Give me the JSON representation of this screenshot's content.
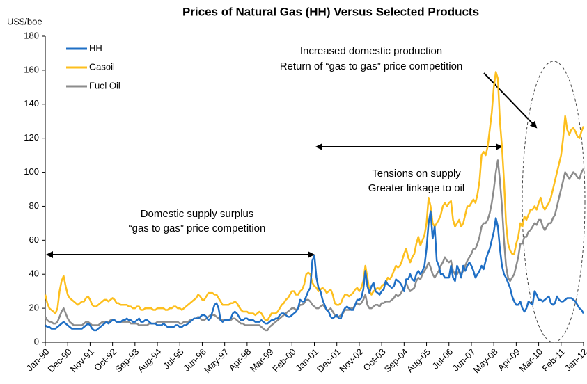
{
  "chart_data": {
    "type": "line",
    "title": "Prices of Natural Gas (HH) Versus Selected Products",
    "y_label": "US$/boe",
    "categories": [
      "Jan-90",
      null,
      null,
      null,
      null,
      null,
      null,
      null,
      null,
      null,
      null,
      "Dec-90",
      null,
      null,
      null,
      null,
      null,
      null,
      null,
      null,
      null,
      null,
      "Nov-91",
      null,
      null,
      null,
      null,
      null,
      null,
      null,
      null,
      null,
      null,
      "Oct-92",
      null,
      null,
      null,
      null,
      null,
      null,
      null,
      null,
      null,
      null,
      "Sep-93",
      null,
      null,
      null,
      null,
      null,
      null,
      null,
      null,
      null,
      null,
      "Aug-94",
      null,
      null,
      null,
      null,
      null,
      null,
      null,
      null,
      null,
      null,
      "Jul-95",
      null,
      null,
      null,
      null,
      null,
      null,
      null,
      null,
      null,
      null,
      "Jun-96",
      null,
      null,
      null,
      null,
      null,
      null,
      null,
      null,
      null,
      null,
      "May-97",
      null,
      null,
      null,
      null,
      null,
      null,
      null,
      null,
      null,
      null,
      "Apr-98",
      null,
      null,
      null,
      null,
      null,
      null,
      null,
      null,
      null,
      null,
      "Mar-99",
      null,
      null,
      null,
      null,
      null,
      null,
      null,
      null,
      null,
      null,
      "Feb-00",
      null,
      null,
      null,
      null,
      null,
      null,
      null,
      null,
      null,
      null,
      "Jan-01",
      null,
      null,
      null,
      null,
      null,
      null,
      null,
      null,
      null,
      null,
      "Dec-01",
      null,
      null,
      null,
      null,
      null,
      null,
      null,
      null,
      null,
      null,
      "Nov-02",
      null,
      null,
      null,
      null,
      null,
      null,
      null,
      null,
      null,
      null,
      "Oct-03",
      null,
      null,
      null,
      null,
      null,
      null,
      null,
      null,
      null,
      null,
      "Sep-04",
      null,
      null,
      null,
      null,
      null,
      null,
      null,
      null,
      null,
      null,
      "Aug-05",
      null,
      null,
      null,
      null,
      null,
      null,
      null,
      null,
      null,
      null,
      "Jul-06",
      null,
      null,
      null,
      null,
      null,
      null,
      null,
      null,
      null,
      null,
      "Jun-07",
      null,
      null,
      null,
      null,
      null,
      null,
      null,
      null,
      null,
      null,
      "May-08",
      null,
      null,
      null,
      null,
      null,
      null,
      null,
      null,
      null,
      null,
      "Apr-09",
      null,
      null,
      null,
      null,
      null,
      null,
      null,
      null,
      null,
      null,
      "Mar-10",
      null,
      null,
      null,
      null,
      null,
      null,
      null,
      null,
      null,
      null,
      "Feb-11",
      null,
      null,
      null,
      null,
      null,
      null,
      null,
      null,
      null,
      null,
      "Jan-12"
    ],
    "series": [
      {
        "name": "HH",
        "color": "#1f6fc5",
        "values": [
          10,
          9,
          9,
          8,
          8,
          8,
          9,
          10,
          11,
          12,
          11,
          10,
          9,
          8,
          8,
          8,
          8,
          8,
          8,
          9,
          10,
          11,
          10,
          8,
          7,
          7,
          8,
          9,
          10,
          11,
          12,
          11,
          12,
          13,
          13,
          12,
          12,
          12,
          13,
          13,
          14,
          13,
          13,
          12,
          12,
          13,
          14,
          12,
          12,
          13,
          13,
          12,
          11,
          11,
          11,
          10,
          10,
          10,
          11,
          10,
          9,
          9,
          9,
          9,
          10,
          10,
          9,
          9,
          10,
          10,
          11,
          12,
          13,
          14,
          14,
          14,
          15,
          16,
          16,
          15,
          13,
          14,
          18,
          22,
          23,
          20,
          13,
          12,
          13,
          13,
          13,
          14,
          17,
          18,
          17,
          15,
          13,
          13,
          14,
          14,
          13,
          13,
          13,
          12,
          12,
          12,
          13,
          12,
          11,
          11,
          12,
          13,
          13,
          14,
          14,
          16,
          17,
          17,
          16,
          15,
          15,
          16,
          17,
          18,
          20,
          25,
          24,
          24,
          27,
          30,
          32,
          48,
          51,
          38,
          32,
          30,
          25,
          22,
          19,
          18,
          15,
          14,
          15,
          16,
          14,
          14,
          18,
          20,
          21,
          20,
          19,
          19,
          22,
          25,
          25,
          26,
          31,
          42,
          33,
          29,
          33,
          35,
          30,
          29,
          28,
          30,
          31,
          36,
          34,
          33,
          32,
          33,
          37,
          36,
          35,
          33,
          30,
          37,
          37,
          40,
          37,
          36,
          40,
          42,
          40,
          42,
          45,
          55,
          70,
          77,
          61,
          68,
          48,
          45,
          40,
          40,
          38,
          38,
          38,
          45,
          38,
          36,
          45,
          42,
          38,
          45,
          42,
          45,
          47,
          45,
          42,
          38,
          40,
          42,
          45,
          43,
          48,
          52,
          55,
          60,
          65,
          73,
          68,
          55,
          45,
          40,
          38,
          35,
          32,
          27,
          24,
          22,
          22,
          24,
          20,
          18,
          20,
          24,
          23,
          22,
          30,
          28,
          25,
          25,
          24,
          25,
          26,
          27,
          23,
          22,
          23,
          27,
          25,
          24,
          24,
          25,
          26,
          26,
          26,
          25,
          24,
          22,
          20,
          19,
          17
        ]
      },
      {
        "name": "Gasoil",
        "color": "#fdbf1e",
        "values": [
          28,
          23,
          20,
          19,
          18,
          17,
          20,
          30,
          36,
          39,
          33,
          28,
          26,
          25,
          24,
          23,
          22,
          23,
          24,
          24,
          26,
          27,
          25,
          22,
          21,
          21,
          22,
          23,
          24,
          25,
          25,
          24,
          25,
          26,
          25,
          23,
          23,
          22,
          22,
          22,
          22,
          21,
          21,
          20,
          20,
          21,
          21,
          19,
          19,
          20,
          20,
          20,
          20,
          19,
          19,
          20,
          20,
          20,
          20,
          19,
          19,
          20,
          20,
          21,
          21,
          20,
          20,
          19,
          20,
          21,
          22,
          23,
          24,
          25,
          26,
          28,
          27,
          25,
          25,
          27,
          29,
          29,
          29,
          28,
          28,
          26,
          24,
          22,
          22,
          22,
          22,
          23,
          23,
          24,
          23,
          21,
          19,
          18,
          18,
          18,
          17,
          17,
          17,
          16,
          17,
          18,
          17,
          15,
          13,
          13,
          15,
          17,
          17,
          17,
          18,
          20,
          22,
          23,
          25,
          26,
          28,
          30,
          30,
          28,
          28,
          30,
          31,
          34,
          40,
          41,
          40,
          35,
          33,
          32,
          30,
          31,
          32,
          31,
          29,
          30,
          31,
          28,
          23,
          22,
          22,
          23,
          26,
          28,
          28,
          27,
          28,
          29,
          31,
          32,
          30,
          32,
          36,
          45,
          38,
          30,
          28,
          30,
          31,
          32,
          31,
          33,
          34,
          35,
          38,
          37,
          39,
          42,
          45,
          44,
          45,
          48,
          52,
          55,
          50,
          47,
          50,
          52,
          58,
          62,
          57,
          60,
          63,
          70,
          85,
          80,
          70,
          68,
          70,
          72,
          75,
          80,
          82,
          80,
          82,
          83,
          72,
          68,
          70,
          72,
          68,
          70,
          75,
          80,
          80,
          82,
          84,
          82,
          87,
          95,
          110,
          112,
          110,
          115,
          125,
          135,
          150,
          159,
          155,
          130,
          115,
          95,
          70,
          58,
          54,
          52,
          52,
          58,
          62,
          70,
          68,
          74,
          72,
          75,
          78,
          78,
          80,
          78,
          82,
          85,
          80,
          78,
          80,
          82,
          85,
          90,
          95,
          100,
          105,
          110,
          120,
          133,
          125,
          122,
          125,
          126,
          124,
          121,
          120,
          124,
          127
        ]
      },
      {
        "name": "Fuel Oil",
        "color": "#8c8c8c",
        "values": [
          15,
          13,
          12,
          12,
          11,
          11,
          12,
          15,
          18,
          20,
          17,
          14,
          12,
          11,
          10,
          10,
          10,
          10,
          10,
          11,
          12,
          12,
          11,
          10,
          10,
          10,
          10,
          11,
          12,
          12,
          12,
          12,
          13,
          13,
          13,
          12,
          12,
          12,
          12,
          12,
          12,
          12,
          11,
          11,
          11,
          11,
          10,
          10,
          10,
          10,
          10,
          11,
          11,
          11,
          11,
          12,
          12,
          12,
          12,
          12,
          12,
          12,
          12,
          12,
          12,
          12,
          11,
          11,
          12,
          12,
          12,
          13,
          13,
          14,
          14,
          15,
          14,
          13,
          13,
          14,
          15,
          16,
          16,
          16,
          15,
          14,
          13,
          13,
          13,
          13,
          13,
          13,
          14,
          14,
          13,
          12,
          11,
          11,
          10,
          10,
          10,
          10,
          10,
          10,
          10,
          10,
          9,
          8,
          7,
          7,
          9,
          10,
          11,
          12,
          13,
          14,
          15,
          16,
          17,
          18,
          19,
          20,
          20,
          19,
          20,
          22,
          22,
          23,
          25,
          25,
          24,
          22,
          21,
          20,
          20,
          21,
          22,
          21,
          19,
          19,
          20,
          18,
          16,
          15,
          15,
          16,
          17,
          19,
          19,
          19,
          20,
          20,
          22,
          23,
          22,
          23,
          25,
          28,
          22,
          20,
          20,
          21,
          22,
          22,
          21,
          23,
          23,
          24,
          24,
          24,
          25,
          26,
          28,
          27,
          28,
          30,
          32,
          35,
          32,
          30,
          31,
          32,
          36,
          38,
          37,
          40,
          42,
          44,
          47,
          44,
          40,
          38,
          40,
          42,
          45,
          47,
          50,
          48,
          47,
          48,
          42,
          40,
          40,
          42,
          40,
          42,
          45,
          48,
          50,
          52,
          55,
          55,
          58,
          62,
          68,
          70,
          70,
          72,
          76,
          82,
          90,
          100,
          107,
          95,
          80,
          60,
          45,
          38,
          36,
          38,
          40,
          45,
          50,
          58,
          58,
          62,
          62,
          65,
          66,
          68,
          70,
          69,
          72,
          72,
          68,
          66,
          68,
          70,
          70,
          73,
          75,
          80,
          85,
          90,
          95,
          100,
          98,
          96,
          98,
          100,
          99,
          97,
          96,
          100,
          102
        ]
      }
    ],
    "ylim": [
      0,
      180
    ],
    "yticks": [
      0,
      20,
      40,
      60,
      80,
      100,
      120,
      140,
      160,
      180
    ],
    "legend": "top-left",
    "annotations": [
      "Increased domestic production",
      "Return of “gas to gas” price competition",
      "Tensions on supply",
      "Greater linkage to oil",
      "Domestic supply surplus",
      "“gas to gas” price competition"
    ]
  }
}
